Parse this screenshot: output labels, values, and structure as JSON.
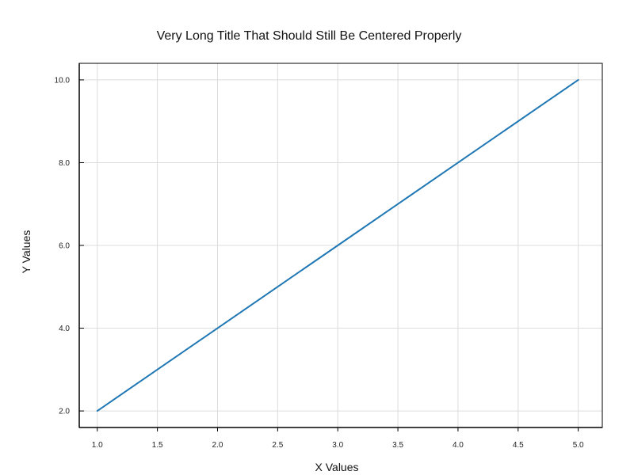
{
  "chart_data": {
    "type": "line",
    "title": "Very Long Title That Should Still Be Centered Properly",
    "xlabel": "X Values",
    "ylabel": "Y Values",
    "xlim": [
      0.85,
      5.2
    ],
    "ylim": [
      1.6,
      10.4
    ],
    "x_ticks": [
      1.0,
      1.5,
      2.0,
      2.5,
      3.0,
      3.5,
      4.0,
      4.5,
      5.0
    ],
    "x_tick_labels": [
      "1.0",
      "1.5",
      "2.0",
      "2.5",
      "3.0",
      "3.5",
      "4.0",
      "4.5",
      "5.0"
    ],
    "y_ticks": [
      2.0,
      4.0,
      6.0,
      8.0,
      10.0
    ],
    "y_tick_labels": [
      "2.0",
      "4.0",
      "6.0",
      "8.0",
      "10.0"
    ],
    "grid": true,
    "series": [
      {
        "x": [
          1.0,
          2.0,
          3.0,
          4.0,
          5.0
        ],
        "y": [
          2.0,
          4.0,
          6.0,
          8.0,
          10.0
        ],
        "color": "#1f77b4"
      }
    ]
  }
}
